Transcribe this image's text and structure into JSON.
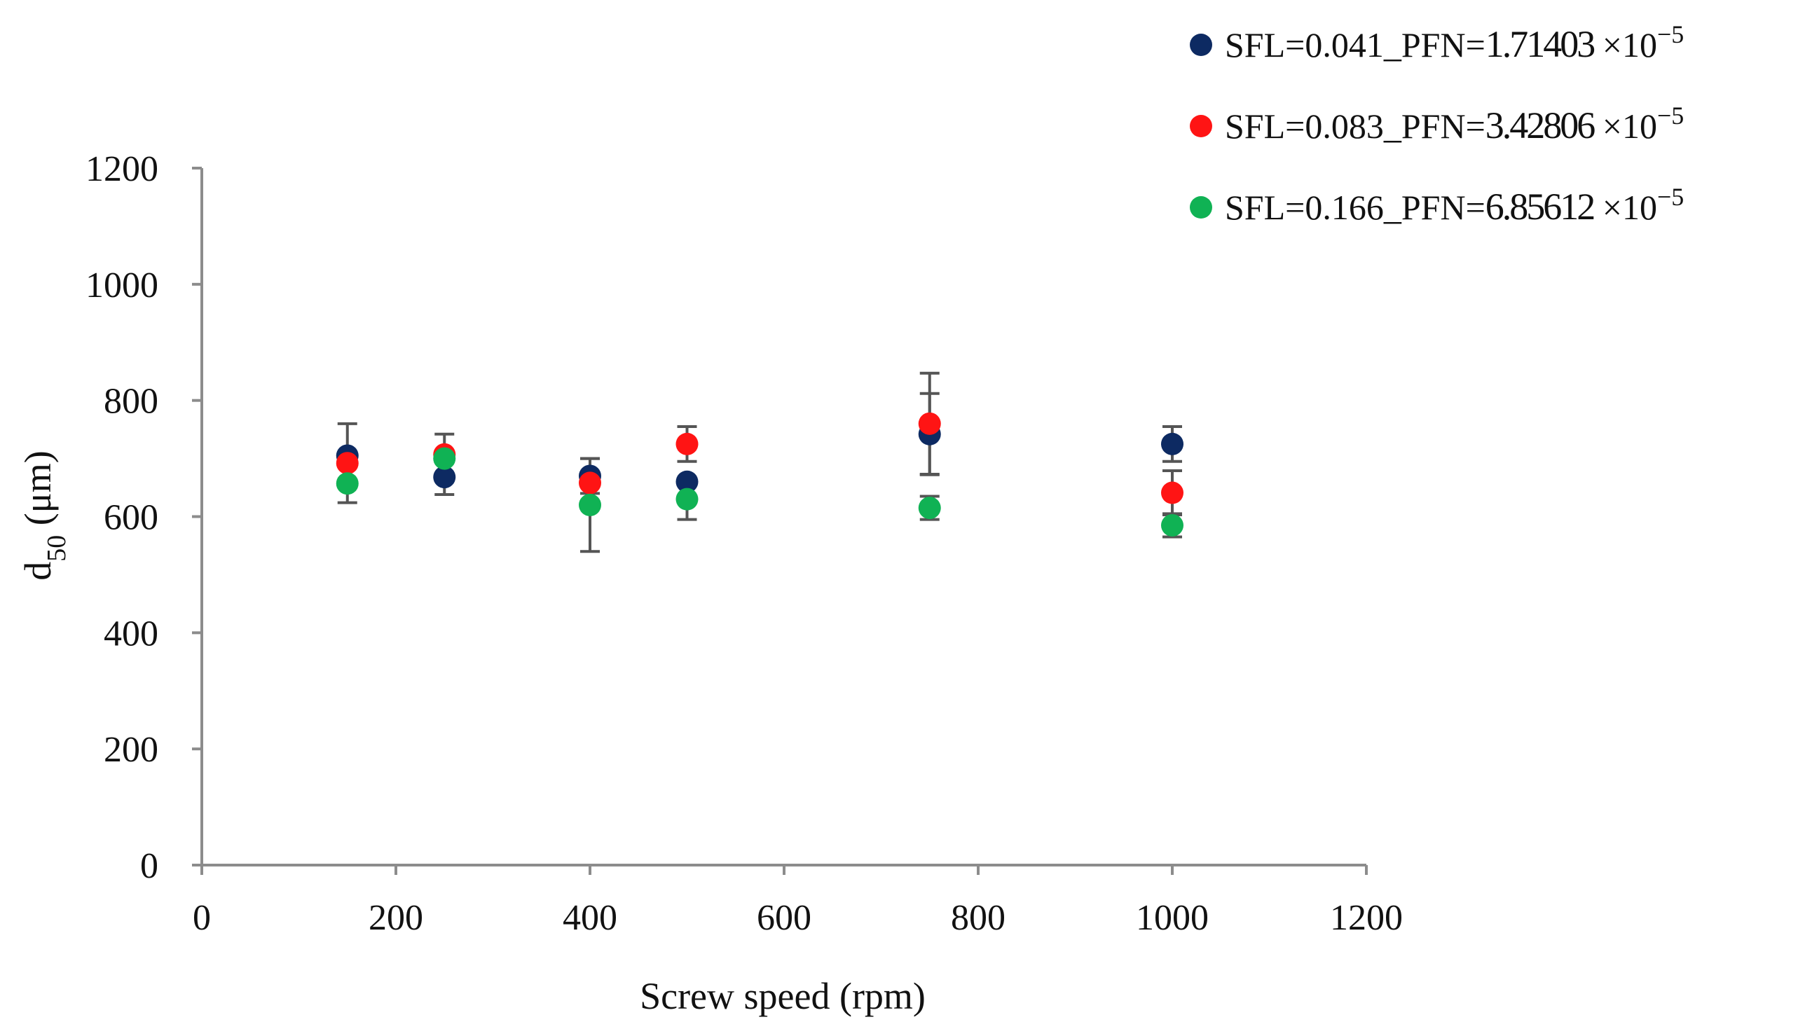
{
  "chart_data": {
    "type": "scatter",
    "title": "",
    "xlabel": "Screw speed (rpm)",
    "ylabel_main": "d",
    "ylabel_sub": "50",
    "ylabel_unit": " (μm)",
    "xlim": [
      0,
      1200
    ],
    "ylim": [
      0,
      1200
    ],
    "xticks": [
      0,
      200,
      400,
      600,
      800,
      1000,
      1200
    ],
    "yticks": [
      0,
      200,
      400,
      600,
      800,
      1000,
      1200
    ],
    "grid": false,
    "legend_position": "top-right",
    "series": [
      {
        "name": "SFL=0.041_PFN=1.71403 ×10−5",
        "label_prefix": "SFL=0.041_PFN=",
        "label_number": "1.71403",
        "label_times": " ×10",
        "label_exp": "−5",
        "color": "#0d2a62",
        "x": [
          150,
          250,
          400,
          500,
          750,
          1000
        ],
        "y": [
          705,
          668,
          670,
          660,
          742,
          725
        ],
        "err": [
          55,
          30,
          30,
          0,
          70,
          30
        ]
      },
      {
        "name": "SFL=0.083_PFN=3.42806 ×10−5",
        "label_prefix": "SFL=0.083_PFN=",
        "label_number": "3.42806",
        "label_times": " ×10",
        "label_exp": "−5",
        "color": "#ff1414",
        "x": [
          150,
          250,
          400,
          500,
          750,
          1000
        ],
        "y": [
          692,
          707,
          658,
          725,
          760,
          641
        ],
        "err": [
          0,
          35,
          0,
          30,
          87,
          38
        ]
      },
      {
        "name": "SFL=0.166_PFN=6.85612 ×10−5",
        "label_prefix": "SFL=0.166_PFN=",
        "label_number": "6.85612",
        "label_times": " ×10",
        "label_exp": "−5",
        "color": "#10b254",
        "x": [
          150,
          250,
          400,
          500,
          750,
          1000
        ],
        "y": [
          657,
          700,
          620,
          630,
          615,
          585
        ],
        "err": [
          33,
          0,
          80,
          35,
          20,
          20
        ]
      }
    ]
  }
}
